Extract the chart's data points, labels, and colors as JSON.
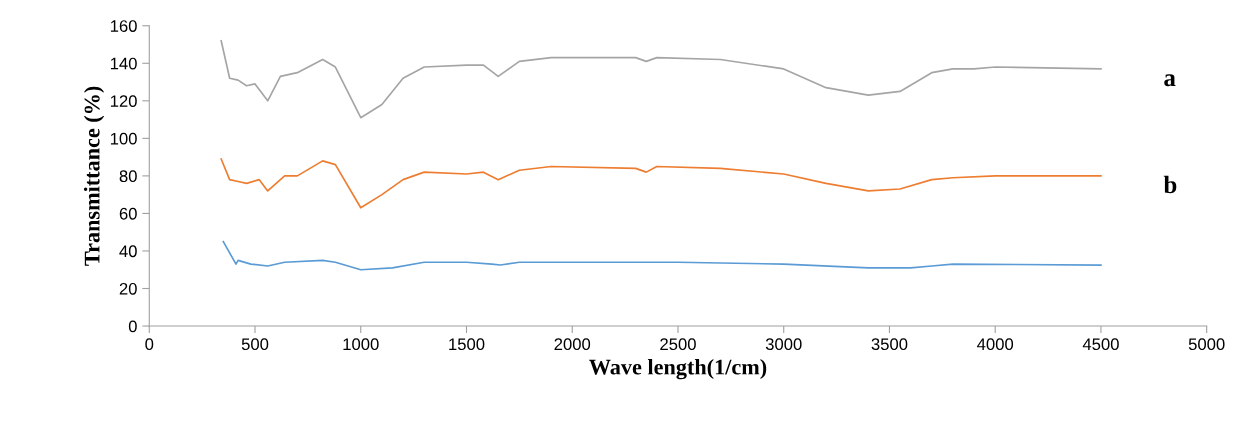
{
  "chart_data": {
    "type": "line",
    "xlabel": "Wave length(1/cm)",
    "ylabel": "Transmittance (%)",
    "xlim": [
      0,
      5000
    ],
    "xticks": [
      0,
      500,
      1000,
      1500,
      2000,
      2500,
      3000,
      3500,
      4000,
      4500,
      5000
    ],
    "ylim": [
      0,
      160
    ],
    "yticks": [
      0,
      20,
      40,
      60,
      80,
      100,
      120,
      140,
      160
    ],
    "grid": false,
    "legend": false,
    "marker": "none",
    "line_style": "solid",
    "series": [
      {
        "name": "a",
        "color": "#a5a5a5",
        "x": [
          340,
          380,
          420,
          460,
          500,
          560,
          620,
          700,
          820,
          880,
          1000,
          1100,
          1200,
          1300,
          1500,
          1580,
          1650,
          1750,
          1900,
          2300,
          2350,
          2400,
          2700,
          3000,
          3200,
          3400,
          3550,
          3700,
          3800,
          3900,
          4000,
          4500
        ],
        "values": [
          152,
          132,
          131,
          128,
          129,
          120,
          133,
          135,
          142,
          138,
          111,
          118,
          132,
          138,
          139,
          139,
          133,
          141,
          143,
          143,
          141,
          143,
          142,
          137,
          127,
          123,
          125,
          135,
          137,
          137,
          138,
          137
        ]
      },
      {
        "name": "b",
        "color": "#ed7d31",
        "x": [
          340,
          380,
          420,
          460,
          520,
          560,
          640,
          700,
          820,
          880,
          1000,
          1100,
          1200,
          1300,
          1500,
          1580,
          1650,
          1750,
          1900,
          2300,
          2350,
          2400,
          2700,
          3000,
          3200,
          3400,
          3550,
          3700,
          3800,
          4000,
          4500
        ],
        "values": [
          89,
          78,
          77,
          76,
          78,
          72,
          80,
          80,
          88,
          86,
          63,
          70,
          78,
          82,
          81,
          82,
          78,
          83,
          85,
          84,
          82,
          85,
          84,
          81,
          76,
          72,
          73,
          78,
          79,
          80,
          80
        ]
      },
      {
        "color": "#5b9bd5",
        "x": [
          350,
          400,
          410,
          420,
          480,
          560,
          640,
          820,
          880,
          1000,
          1150,
          1300,
          1500,
          1620,
          1660,
          1750,
          2000,
          2500,
          3000,
          3400,
          3600,
          3700,
          3800,
          4500
        ],
        "values": [
          45,
          35,
          33,
          35,
          33,
          32,
          34,
          35,
          34,
          30,
          31,
          34,
          34,
          33,
          32.5,
          34,
          34,
          34,
          33,
          31,
          31,
          32,
          33,
          32.5
        ]
      }
    ]
  }
}
